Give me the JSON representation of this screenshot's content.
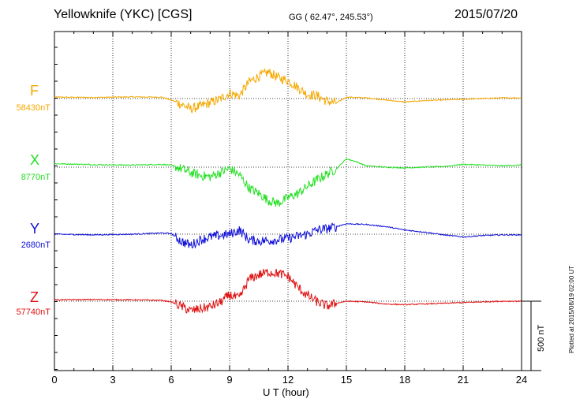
{
  "header": {
    "station": "Yellowknife (YKC)  [CGS]",
    "coords": "GG ( 62.47°, 245.53°)",
    "date": "2015/07/20"
  },
  "footer": {
    "plotted": "Plotted at 2015/08/19 02:00 UT",
    "scale": "500 nT"
  },
  "chart_data": {
    "type": "line",
    "xlabel": "U T (hour)",
    "xlim": [
      0,
      24
    ],
    "xticks": [
      "0",
      "3",
      "6",
      "9",
      "12",
      "15",
      "18",
      "21",
      "24"
    ],
    "scale_bar_nT": 500,
    "grid": "dotted vertical every 3 h",
    "series": [
      {
        "name": "F",
        "baseline_label": "58430nT",
        "baseline_nT": 58430,
        "color": "#f5a800",
        "points": [
          [
            0,
            10
          ],
          [
            2,
            8
          ],
          [
            4,
            12
          ],
          [
            5.5,
            10
          ],
          [
            6,
            -10
          ],
          [
            6.5,
            -40
          ],
          [
            7,
            -75
          ],
          [
            7.5,
            -55
          ],
          [
            8,
            -30
          ],
          [
            8.5,
            -5
          ],
          [
            9,
            40
          ],
          [
            9.5,
            20
          ],
          [
            10,
            120
          ],
          [
            10.5,
            160
          ],
          [
            11,
            190
          ],
          [
            11.5,
            150
          ],
          [
            12,
            130
          ],
          [
            12.5,
            80
          ],
          [
            13,
            30
          ],
          [
            13.5,
            20
          ],
          [
            14,
            -20
          ],
          [
            14.5,
            -30
          ],
          [
            15,
            10
          ],
          [
            16,
            5
          ],
          [
            17,
            -10
          ],
          [
            18,
            -25
          ],
          [
            19,
            -15
          ],
          [
            20,
            -10
          ],
          [
            21,
            -5
          ],
          [
            22,
            0
          ],
          [
            23,
            5
          ],
          [
            24,
            5
          ]
        ]
      },
      {
        "name": "X",
        "baseline_label": "8770nT",
        "baseline_nT": 8770,
        "color": "#22e022",
        "points": [
          [
            0,
            25
          ],
          [
            2,
            18
          ],
          [
            4,
            15
          ],
          [
            5.5,
            20
          ],
          [
            6,
            15
          ],
          [
            6.5,
            -10
          ],
          [
            7,
            -40
          ],
          [
            7.5,
            -60
          ],
          [
            8,
            -70
          ],
          [
            8.5,
            -40
          ],
          [
            9,
            -10
          ],
          [
            9.5,
            -55
          ],
          [
            10,
            -150
          ],
          [
            10.5,
            -190
          ],
          [
            11,
            -240
          ],
          [
            11.5,
            -260
          ],
          [
            12,
            -220
          ],
          [
            12.5,
            -190
          ],
          [
            13,
            -140
          ],
          [
            13.5,
            -90
          ],
          [
            14,
            -50
          ],
          [
            14.5,
            -10
          ],
          [
            15,
            60
          ],
          [
            15.5,
            40
          ],
          [
            16,
            10
          ],
          [
            17,
            0
          ],
          [
            18,
            -5
          ],
          [
            19,
            0
          ],
          [
            20,
            5
          ],
          [
            21,
            20
          ],
          [
            22,
            15
          ],
          [
            23,
            10
          ],
          [
            24,
            15
          ]
        ]
      },
      {
        "name": "Y",
        "baseline_label": "2680nT",
        "baseline_nT": 2680,
        "color": "#1010d8",
        "points": [
          [
            0,
            0
          ],
          [
            2,
            -5
          ],
          [
            4,
            0
          ],
          [
            5.5,
            8
          ],
          [
            6,
            5
          ],
          [
            6.5,
            -50
          ],
          [
            7,
            -80
          ],
          [
            7.5,
            -40
          ],
          [
            8,
            -20
          ],
          [
            8.5,
            -10
          ],
          [
            9,
            0
          ],
          [
            9.5,
            30
          ],
          [
            10,
            -40
          ],
          [
            10.5,
            -50
          ],
          [
            11,
            -45
          ],
          [
            11.5,
            -40
          ],
          [
            12,
            -30
          ],
          [
            12.5,
            -15
          ],
          [
            13,
            0
          ],
          [
            13.5,
            30
          ],
          [
            14,
            40
          ],
          [
            14.5,
            55
          ],
          [
            15,
            75
          ],
          [
            16,
            70
          ],
          [
            17,
            55
          ],
          [
            18,
            30
          ],
          [
            19,
            15
          ],
          [
            20,
            -5
          ],
          [
            21,
            -20
          ],
          [
            22,
            -10
          ],
          [
            23,
            -5
          ],
          [
            24,
            -5
          ]
        ]
      },
      {
        "name": "Z",
        "baseline_label": "57740nT",
        "baseline_nT": 57740,
        "color": "#e01010",
        "points": [
          [
            0,
            10
          ],
          [
            2,
            12
          ],
          [
            4,
            10
          ],
          [
            5.5,
            6
          ],
          [
            6,
            -5
          ],
          [
            6.5,
            -35
          ],
          [
            7,
            -70
          ],
          [
            7.5,
            -55
          ],
          [
            8,
            -40
          ],
          [
            8.5,
            -10
          ],
          [
            9,
            45
          ],
          [
            9.5,
            20
          ],
          [
            10,
            160
          ],
          [
            10.5,
            190
          ],
          [
            11,
            210
          ],
          [
            11.5,
            200
          ],
          [
            12,
            180
          ],
          [
            12.5,
            100
          ],
          [
            13,
            40
          ],
          [
            13.5,
            -5
          ],
          [
            14,
            -35
          ],
          [
            14.5,
            -15
          ],
          [
            15,
            0
          ],
          [
            16,
            -5
          ],
          [
            17,
            -20
          ],
          [
            18,
            -25
          ],
          [
            19,
            -20
          ],
          [
            20,
            -15
          ],
          [
            21,
            -10
          ],
          [
            22,
            -5
          ],
          [
            23,
            0
          ],
          [
            24,
            0
          ]
        ]
      }
    ]
  }
}
